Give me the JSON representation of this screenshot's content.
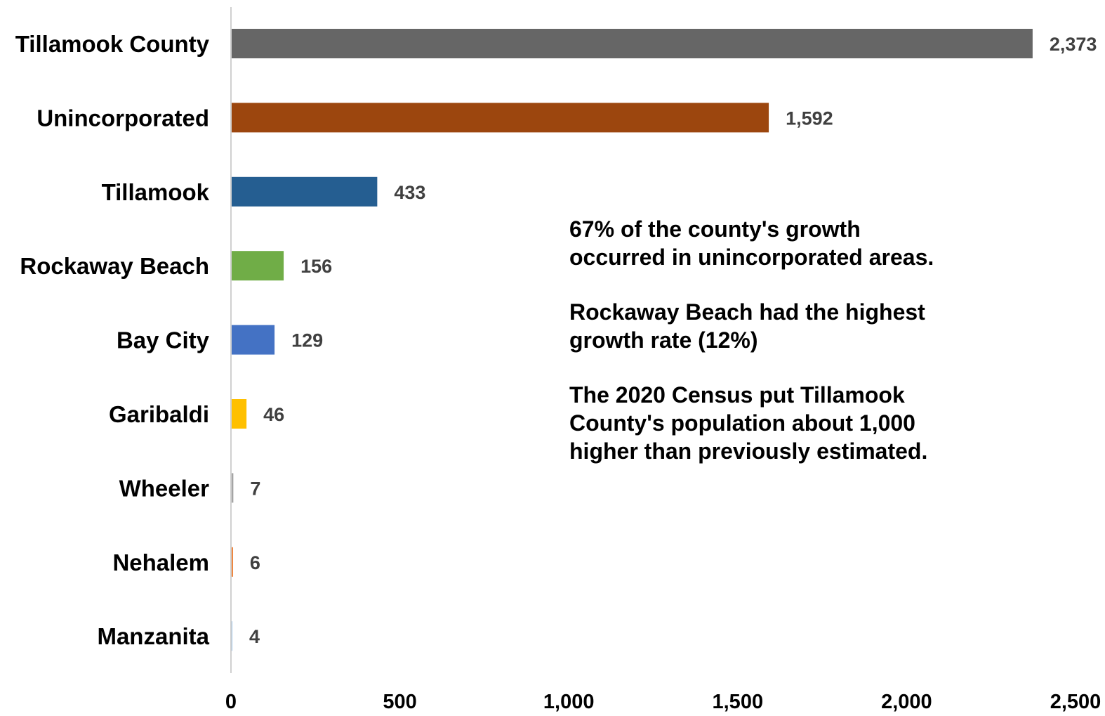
{
  "chart_data": {
    "type": "bar",
    "orientation": "horizontal",
    "categories": [
      "Tillamook County",
      "Unincorporated",
      "Tillamook",
      "Rockaway Beach",
      "Bay City",
      "Garibaldi",
      "Wheeler",
      "Nehalem",
      "Manzanita"
    ],
    "values": [
      2373,
      1592,
      433,
      156,
      129,
      46,
      7,
      6,
      4
    ],
    "value_labels": [
      "2,373",
      "1,592",
      "433",
      "156",
      "129",
      "46",
      "7",
      "6",
      "4"
    ],
    "colors": [
      "#666666",
      "#9c460e",
      "#255e91",
      "#70ad47",
      "#4472c4",
      "#ffc000",
      "#a5a5a5",
      "#ed7d31",
      "#9dc3e6"
    ],
    "xlim": [
      0,
      2500
    ],
    "xticks": [
      0,
      500,
      1000,
      1500,
      2000,
      2500
    ],
    "xtick_labels": [
      "0",
      "500",
      "1,000",
      "1,500",
      "2,000",
      "2,500"
    ],
    "title": "",
    "xlabel": "",
    "ylabel": "",
    "grid": false,
    "annotations": [
      [
        "67% of the county's growth",
        "occurred in unincorporated areas."
      ],
      [
        "Rockaway Beach had the highest",
        "growth rate (12%)"
      ],
      [
        "The 2020 Census put Tillamook",
        "County's population about 1,000",
        "higher than previously estimated."
      ]
    ]
  }
}
